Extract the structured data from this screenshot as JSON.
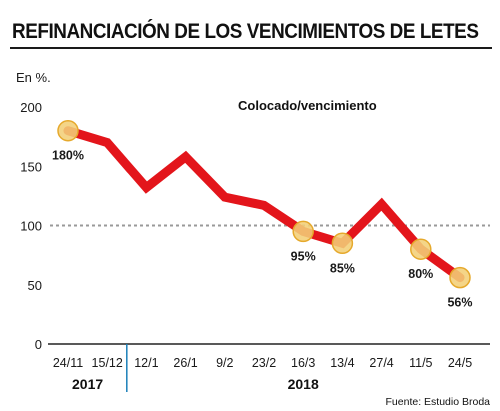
{
  "title": "REFINANCIACIÓN DE LOS VENCIMIENTOS DE LETES",
  "source": "Fuente: Estudio Broda",
  "chart_data": {
    "type": "line",
    "ylabel": "En %.",
    "series_label": "Colocado/vencimiento",
    "categories": [
      "24/11",
      "15/12",
      "12/1",
      "26/1",
      "9/2",
      "23/2",
      "16/3",
      "13/4",
      "27/4",
      "11/5",
      "24/5"
    ],
    "series": [
      {
        "values": [
          180,
          170,
          132,
          158,
          124,
          117,
          95,
          85,
          118,
          80,
          56
        ]
      }
    ],
    "ylim": [
      0,
      200
    ],
    "yticks": [
      0,
      50,
      100,
      150,
      200
    ],
    "reference_line": 100,
    "point_labels": [
      {
        "index": 0,
        "text": "180%"
      },
      {
        "index": 6,
        "text": "95%"
      },
      {
        "index": 7,
        "text": "85%"
      },
      {
        "index": 9,
        "text": "80%"
      },
      {
        "index": 10,
        "text": "56%"
      }
    ],
    "year_groups": [
      {
        "label": "2017",
        "start": 0,
        "end": 1
      },
      {
        "label": "2018",
        "start": 2,
        "end": 10
      }
    ],
    "colors": {
      "line": "#e3151b",
      "marker_fill": "#f3cf78",
      "marker_stroke": "#e6a92c",
      "reference": "#999999",
      "axis": "#1a7fb8"
    },
    "grid": false
  }
}
